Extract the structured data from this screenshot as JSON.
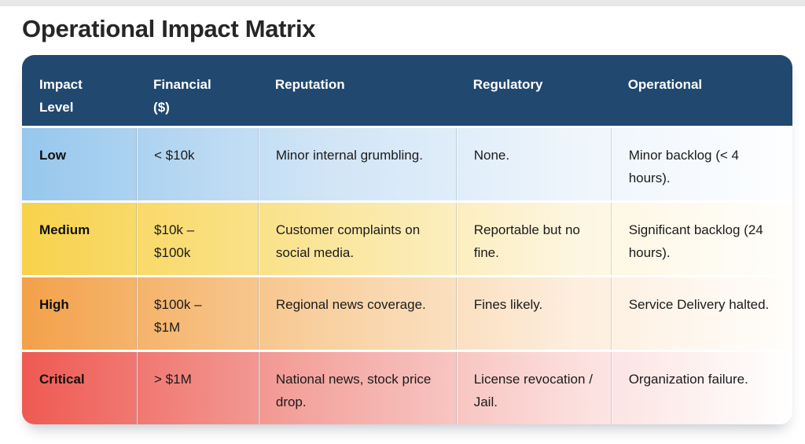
{
  "title": "Operational Impact Matrix",
  "colors": {
    "header_bg": "#21486f",
    "header_text": "#ffffff",
    "body_text": "#1b1b1b",
    "page_bg": "#ffffff",
    "top_strip": "#e8e8ea",
    "row_low": "#96c7ed",
    "row_medium": "#f8d24b",
    "row_high": "#f3a149",
    "row_critical": "#ee5a52"
  },
  "table": {
    "columns": [
      {
        "id": "impact-level",
        "label": "Impact\nLevel"
      },
      {
        "id": "financial",
        "label": "Financial\n($)"
      },
      {
        "id": "reputation",
        "label": "Reputation"
      },
      {
        "id": "regulatory",
        "label": "Regulatory"
      },
      {
        "id": "operational",
        "label": "Operational"
      }
    ],
    "rows": [
      {
        "level": "Low",
        "financial": "< $10k",
        "reputation": "Minor internal grumbling.",
        "regulatory": "None.",
        "operational": "Minor backlog (< 4 hours).",
        "gradient": {
          "start": "#96c7ed",
          "mid": "#cfe4f6",
          "light": "#eef5fc",
          "end": "#fdfeff"
        }
      },
      {
        "level": "Medium",
        "financial": "$10k –\n$100k",
        "reputation": "Customer complaints on social media.",
        "regulatory": "Reportable but no fine.",
        "operational": "Significant backlog (24 hours).",
        "gradient": {
          "start": "#f8d24b",
          "mid": "#fae598",
          "light": "#fdf6e0",
          "end": "#fffefb"
        }
      },
      {
        "level": "High",
        "financial": "$100k –\n$1M",
        "reputation": "Regional news coverage.",
        "regulatory": "Fines likely.",
        "operational": "Service Delivery halted.",
        "gradient": {
          "start": "#f3a149",
          "mid": "#f8cf9e",
          "light": "#fdeede",
          "end": "#fffefb"
        }
      },
      {
        "level": "Critical",
        "financial": "> $1M",
        "reputation": "National news, stock price drop.",
        "regulatory": "License revocation / Jail.",
        "operational": "Organization failure.",
        "gradient": {
          "start": "#ee5a52",
          "mid": "#f4a6a1",
          "light": "#fbdfdd",
          "end": "#ffffff"
        }
      }
    ]
  },
  "chart_data": {
    "type": "table",
    "title": "Operational Impact Matrix",
    "columns": [
      "Impact Level",
      "Financial ($)",
      "Reputation",
      "Regulatory",
      "Operational"
    ],
    "rows": [
      [
        "Low",
        "< $10k",
        "Minor internal grumbling.",
        "None.",
        "Minor backlog (< 4 hours)."
      ],
      [
        "Medium",
        "$10k – $100k",
        "Customer complaints on social media.",
        "Reportable but no fine.",
        "Significant backlog (24 hours)."
      ],
      [
        "High",
        "$100k – $1M",
        "Regional news coverage.",
        "Fines likely.",
        "Service Delivery halted."
      ],
      [
        "Critical",
        "> $1M",
        "National news, stock price drop.",
        "License revocation / Jail.",
        "Organization failure."
      ]
    ],
    "row_color_coding": {
      "Low": "#96c7ed",
      "Medium": "#f8d24b",
      "High": "#f3a149",
      "Critical": "#ee5a52"
    },
    "layout_hints": "Each body row is a horizontal gradient fading from its status color on the left to white on the right; dark navy header band #21486f with white bold labels; rounded card with drop shadow."
  }
}
